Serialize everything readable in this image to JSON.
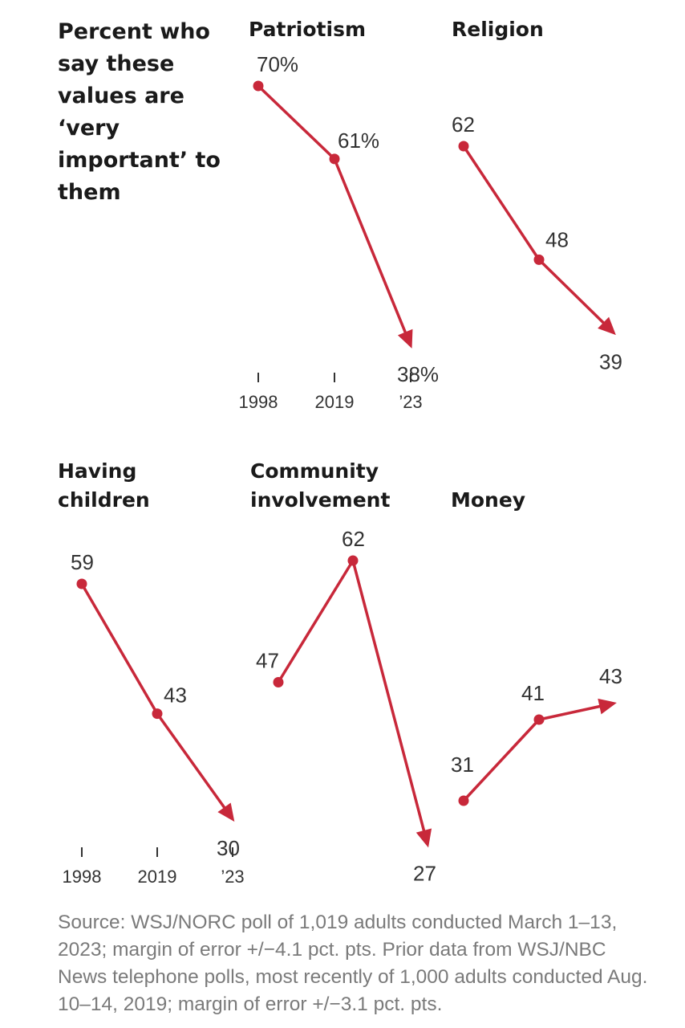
{
  "title": "Percent who say these values are ‘very important’ to them",
  "source": "Source: WSJ/NORC poll of 1,019 adults conducted March 1–13, 2023; margin of error +/−4.1 pct. pts. Prior data from WSJ/NBC News telephone polls, most recently of 1,000 adults conducted Aug. 10–14, 2019; margin of error +/−3.1 pct. pts.",
  "colors": {
    "line": "#c8283a"
  },
  "chart_data": [
    {
      "type": "line",
      "title": "Patriotism",
      "x": [
        "1998",
        "2019",
        "’23"
      ],
      "values": [
        70,
        61,
        38
      ],
      "labels": [
        "70%",
        "61%",
        "38%"
      ],
      "tick_labels": [
        "1998",
        "2019",
        "’23"
      ]
    },
    {
      "type": "line",
      "title": "Religion",
      "x": [
        "1998",
        "2019",
        "’23"
      ],
      "values": [
        62,
        48,
        39
      ],
      "labels": [
        "62",
        "48",
        "39"
      ]
    },
    {
      "type": "line",
      "title": "Having children",
      "x": [
        "1998",
        "2019",
        "’23"
      ],
      "values": [
        59,
        43,
        30
      ],
      "labels": [
        "59",
        "43",
        "30"
      ],
      "tick_labels": [
        "1998",
        "2019",
        "’23"
      ]
    },
    {
      "type": "line",
      "title": "Community involvement",
      "x": [
        "1998",
        "2019",
        "’23"
      ],
      "values": [
        47,
        62,
        27
      ],
      "labels": [
        "47",
        "62",
        "27"
      ]
    },
    {
      "type": "line",
      "title": "Money",
      "x": [
        "1998",
        "2019",
        "’23"
      ],
      "values": [
        31,
        41,
        43
      ],
      "labels": [
        "31",
        "41",
        "43"
      ]
    }
  ]
}
